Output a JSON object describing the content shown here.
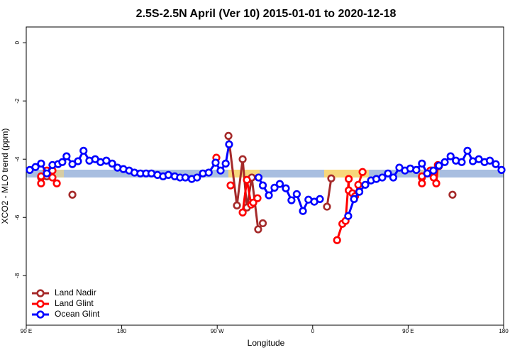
{
  "chart_data": {
    "type": "line",
    "title": "2.5S-2.5N April (Ver 10)   2015-01-01 to 2020-12-18",
    "xlabel": "Longitude",
    "ylabel": "XCO2 - MLO trend (ppm)",
    "xlim": [
      90,
      540
    ],
    "ylim": [
      -9.7,
      0.54
    ],
    "xticks": [
      {
        "value": 90,
        "label": "90 E"
      },
      180,
      {
        "value": 270,
        "label": "90 W"
      },
      {
        "value": 360,
        "label": "0"
      },
      {
        "value": 450,
        "label": "90 E"
      },
      {
        "value": 540,
        "label": "180"
      }
    ],
    "yticks": [
      0,
      -2,
      -4,
      -6,
      -8
    ],
    "legend": "bottom-left",
    "series": [
      {
        "name": "Land Nadir",
        "color": "#a52a2a",
        "x": [
          104,
          null,
          109.4,
          null,
          133.5,
          null,
          280.6,
          288.6,
          294,
          298,
          302.6,
          308.6,
          313,
          null,
          373.5,
          377.5,
          null,
          463,
          null,
          472,
          null,
          479,
          null,
          491.8
        ],
        "values": [
          -4.63,
          null,
          -4.59,
          null,
          -5.22,
          null,
          -3.2,
          -5.59,
          -4.0,
          -5.66,
          -4.63,
          -6.41,
          -6.2,
          null,
          -5.63,
          -4.66,
          null,
          -4.63,
          null,
          -4.39,
          null,
          -4.24,
          null,
          -5.22
        ]
      },
      {
        "name": "Land Glint",
        "color": "#ff0000",
        "x": [
          104,
          null,
          104,
          null,
          109.4,
          114.7,
          114.7,
          118.8,
          null,
          269.2,
          null,
          282.6,
          null,
          294,
          298,
          302,
          304,
          308,
          null,
          383,
          388,
          391,
          394,
          394,
          397.5,
          400,
          403,
          407,
          null,
          463,
          null,
          463,
          null,
          471,
          474,
          476.5,
          478
        ],
        "values": [
          -4.59,
          null,
          -4.83,
          null,
          -4.39,
          -4.39,
          -4.63,
          -4.83,
          null,
          -3.95,
          null,
          -4.9,
          null,
          -5.83,
          -4.71,
          -5.56,
          -5.49,
          -5.34,
          null,
          -6.78,
          -6.22,
          -6.12,
          -4.68,
          -5.07,
          -5.17,
          -5.27,
          -4.88,
          -4.44,
          null,
          -4.83,
          null,
          -4.59,
          null,
          -4.39,
          -4.63,
          -4.83,
          -4.2
        ]
      },
      {
        "name": "Ocean Glint",
        "color": "#0000ff",
        "x": [
          93.3,
          98.7,
          104,
          109.4,
          114.7,
          120,
          124,
          128,
          133.5,
          138.8,
          144,
          149.5,
          155,
          160,
          165.5,
          171,
          176,
          181.6,
          187,
          192,
          197.6,
          203,
          208,
          213.7,
          219,
          224,
          230,
          235,
          240,
          246,
          251,
          256.5,
          262,
          268.5,
          273.2,
          278,
          281.2,
          null,
          309,
          313,
          318.7,
          324,
          329,
          334.7,
          340,
          345,
          350.8,
          356,
          361.5,
          366.8,
          null,
          393.5,
          399,
          404,
          409.6,
          415,
          420,
          425.6,
          431,
          436,
          441.7,
          447,
          452,
          457.7,
          463,
          468,
          473.8,
          479,
          484.5,
          490,
          495,
          500.5,
          505.9,
          511,
          516.6,
          522,
          527,
          532.6,
          538
        ],
        "values": [
          -4.37,
          -4.27,
          -4.15,
          -4.49,
          -4.2,
          -4.17,
          -4.1,
          -3.9,
          -4.17,
          -4.07,
          -3.71,
          -4.05,
          -4.0,
          -4.1,
          -4.05,
          -4.15,
          -4.29,
          -4.34,
          -4.39,
          -4.46,
          -4.49,
          -4.49,
          -4.49,
          -4.54,
          -4.59,
          -4.54,
          -4.59,
          -4.63,
          -4.63,
          -4.68,
          -4.63,
          -4.49,
          -4.46,
          -4.12,
          -4.39,
          -4.15,
          -3.49,
          null,
          -4.63,
          -4.9,
          -5.24,
          -4.98,
          -4.85,
          -5.0,
          -5.41,
          -5.2,
          -5.78,
          -5.39,
          -5.46,
          -5.37,
          null,
          -5.95,
          -5.37,
          -5.12,
          -4.88,
          -4.73,
          -4.68,
          -4.63,
          -4.49,
          -4.63,
          -4.29,
          -4.39,
          -4.32,
          -4.37,
          -4.15,
          -4.49,
          -4.39,
          -4.22,
          -4.1,
          -3.9,
          -4.05,
          -4.1,
          -3.71,
          -4.07,
          -4.0,
          -4.1,
          -4.05,
          -4.17,
          -4.37
        ]
      }
    ]
  }
}
